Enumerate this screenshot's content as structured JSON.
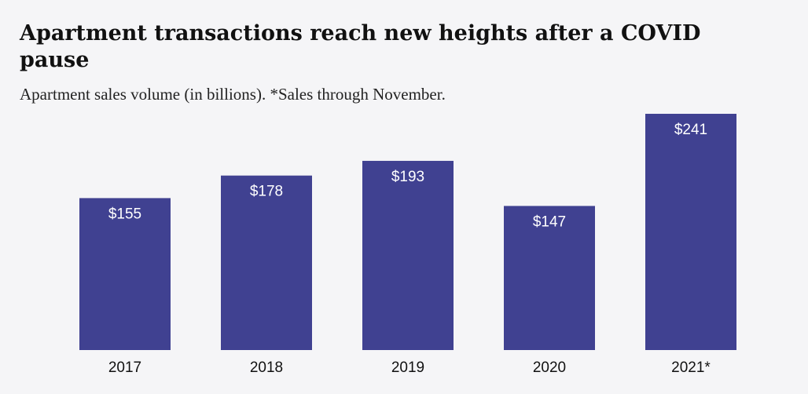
{
  "title": "Apartment transactions reach new heights after a COVID pause",
  "subtitle": "Apartment sales volume (in billions). *Sales through November.",
  "colors": {
    "bar": "#404191",
    "background": "#f5f5f7"
  },
  "chart_data": {
    "type": "bar",
    "categories": [
      "2017",
      "2018",
      "2019",
      "2020",
      "2021*"
    ],
    "values": [
      155,
      178,
      193,
      147,
      241
    ],
    "value_labels": [
      "$155",
      "$178",
      "$193",
      "$147",
      "$241"
    ],
    "xlabel": "",
    "ylabel": "",
    "ylim": [
      0,
      241
    ],
    "grid": false,
    "legend": "none"
  }
}
